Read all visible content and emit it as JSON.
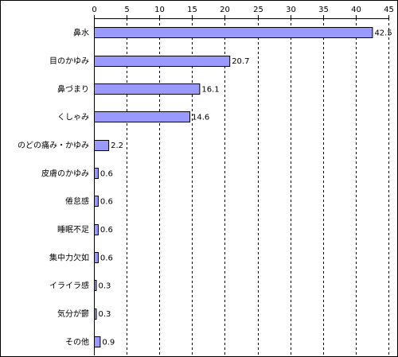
{
  "chart_data": {
    "type": "bar",
    "orientation": "horizontal",
    "title": "",
    "xlabel": "",
    "ylabel": "",
    "categories": [
      "鼻水",
      "目のかゆみ",
      "鼻づまり",
      "くしゃみ",
      "のどの痛み・かゆみ",
      "皮膚のかゆみ",
      "倦怠感",
      "睡眠不足",
      "集中力欠如",
      "イライラ感",
      "気分が鬱",
      "その他"
    ],
    "values": [
      42.5,
      20.7,
      16.1,
      14.6,
      2.2,
      0.6,
      0.6,
      0.6,
      0.6,
      0.3,
      0.3,
      0.9
    ],
    "value_labels": [
      "42.5",
      "20.7",
      "16.1",
      "14.6",
      "2.2",
      "0.6",
      "0.6",
      "0.6",
      "0.6",
      "0.3",
      "0.3",
      "0.9"
    ],
    "xlim": [
      0,
      45
    ],
    "ticks": [
      0,
      5,
      10,
      15,
      20,
      25,
      30,
      35,
      40,
      45
    ],
    "tick_labels": [
      "0",
      "5",
      "10",
      "15",
      "20",
      "25",
      "30",
      "35",
      "40",
      "45"
    ],
    "axis_position": "top",
    "grid": true,
    "legend": "none",
    "colors": {
      "bar_fill": "#9999ff",
      "bar_stroke": "#000000",
      "grid": "#000000",
      "background": "#ffffff"
    }
  }
}
